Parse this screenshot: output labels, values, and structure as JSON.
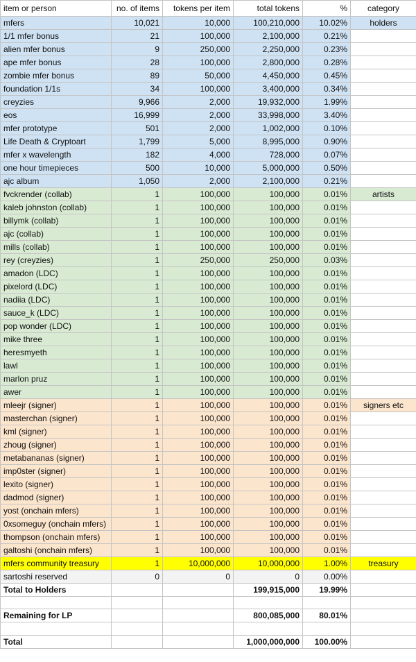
{
  "header": [
    "item or person",
    "no. of items",
    "tokens per item",
    "total tokens",
    "%",
    "category"
  ],
  "groups": [
    {
      "color": "#cfe2f3",
      "rows": [
        {
          "item": "mfers",
          "count": "10,021",
          "per_item": "10,000",
          "total": "100,210,000",
          "pct": "10.02%",
          "category": "holders"
        },
        {
          "item": "1/1 mfer bonus",
          "count": "21",
          "per_item": "100,000",
          "total": "2,100,000",
          "pct": "0.21%"
        },
        {
          "item": "alien mfer bonus",
          "count": "9",
          "per_item": "250,000",
          "total": "2,250,000",
          "pct": "0.23%"
        },
        {
          "item": "ape mfer bonus",
          "count": "28",
          "per_item": "100,000",
          "total": "2,800,000",
          "pct": "0.28%"
        },
        {
          "item": "zombie mfer bonus",
          "count": "89",
          "per_item": "50,000",
          "total": "4,450,000",
          "pct": "0.45%"
        },
        {
          "item": "foundation 1/1s",
          "count": "34",
          "per_item": "100,000",
          "total": "3,400,000",
          "pct": "0.34%"
        },
        {
          "item": "creyzies",
          "count": "9,966",
          "per_item": "2,000",
          "total": "19,932,000",
          "pct": "1.99%"
        },
        {
          "item": "eos",
          "count": "16,999",
          "per_item": "2,000",
          "total": "33,998,000",
          "pct": "3.40%"
        },
        {
          "item": "mfer prototype",
          "count": "501",
          "per_item": "2,000",
          "total": "1,002,000",
          "pct": "0.10%"
        },
        {
          "item": "Life Death & Cryptoart",
          "count": "1,799",
          "per_item": "5,000",
          "total": "8,995,000",
          "pct": "0.90%"
        },
        {
          "item": "mfer x wavelength",
          "count": "182",
          "per_item": "4,000",
          "total": "728,000",
          "pct": "0.07%"
        },
        {
          "item": "one hour timepieces",
          "count": "500",
          "per_item": "10,000",
          "total": "5,000,000",
          "pct": "0.50%"
        },
        {
          "item": "ajc album",
          "count": "1,050",
          "per_item": "2,000",
          "total": "2,100,000",
          "pct": "0.21%"
        }
      ]
    },
    {
      "color": "#d9ead3",
      "rows": [
        {
          "item": "fvckrender (collab)",
          "count": "1",
          "per_item": "100,000",
          "total": "100,000",
          "pct": "0.01%",
          "category": "artists"
        },
        {
          "item": "kaleb johnston (collab)",
          "count": "1",
          "per_item": "100,000",
          "total": "100,000",
          "pct": "0.01%"
        },
        {
          "item": "billymk (collab)",
          "count": "1",
          "per_item": "100,000",
          "total": "100,000",
          "pct": "0.01%"
        },
        {
          "item": "ajc (collab)",
          "count": "1",
          "per_item": "100,000",
          "total": "100,000",
          "pct": "0.01%"
        },
        {
          "item": "mills (collab)",
          "count": "1",
          "per_item": "100,000",
          "total": "100,000",
          "pct": "0.01%"
        },
        {
          "item": "rey (creyzies)",
          "count": "1",
          "per_item": "250,000",
          "total": "250,000",
          "pct": "0.03%"
        },
        {
          "item": "amadon (LDC)",
          "count": "1",
          "per_item": "100,000",
          "total": "100,000",
          "pct": "0.01%"
        },
        {
          "item": "pixelord (LDC)",
          "count": "1",
          "per_item": "100,000",
          "total": "100,000",
          "pct": "0.01%"
        },
        {
          "item": "nadiia (LDC)",
          "count": "1",
          "per_item": "100,000",
          "total": "100,000",
          "pct": "0.01%"
        },
        {
          "item": "sauce_k (LDC)",
          "count": "1",
          "per_item": "100,000",
          "total": "100,000",
          "pct": "0.01%"
        },
        {
          "item": "pop wonder (LDC)",
          "count": "1",
          "per_item": "100,000",
          "total": "100,000",
          "pct": "0.01%"
        },
        {
          "item": "mike three",
          "count": "1",
          "per_item": "100,000",
          "total": "100,000",
          "pct": "0.01%"
        },
        {
          "item": "heresmyeth",
          "count": "1",
          "per_item": "100,000",
          "total": "100,000",
          "pct": "0.01%"
        },
        {
          "item": "lawl",
          "count": "1",
          "per_item": "100,000",
          "total": "100,000",
          "pct": "0.01%"
        },
        {
          "item": "marlon pruz",
          "count": "1",
          "per_item": "100,000",
          "total": "100,000",
          "pct": "0.01%"
        },
        {
          "item": "awer",
          "count": "1",
          "per_item": "100,000",
          "total": "100,000",
          "pct": "0.01%"
        }
      ]
    },
    {
      "color": "#fce5cd",
      "rows": [
        {
          "item": "mleejr (signer)",
          "count": "1",
          "per_item": "100,000",
          "total": "100,000",
          "pct": "0.01%",
          "category": "signers etc"
        },
        {
          "item": "masterchan (signer)",
          "count": "1",
          "per_item": "100,000",
          "total": "100,000",
          "pct": "0.01%"
        },
        {
          "item": "kml (signer)",
          "count": "1",
          "per_item": "100,000",
          "total": "100,000",
          "pct": "0.01%"
        },
        {
          "item": "zhoug (signer)",
          "count": "1",
          "per_item": "100,000",
          "total": "100,000",
          "pct": "0.01%"
        },
        {
          "item": "metabananas (signer)",
          "count": "1",
          "per_item": "100,000",
          "total": "100,000",
          "pct": "0.01%"
        },
        {
          "item": "imp0ster (signer)",
          "count": "1",
          "per_item": "100,000",
          "total": "100,000",
          "pct": "0.01%"
        },
        {
          "item": "lexito (signer)",
          "count": "1",
          "per_item": "100,000",
          "total": "100,000",
          "pct": "0.01%"
        },
        {
          "item": "dadmod (signer)",
          "count": "1",
          "per_item": "100,000",
          "total": "100,000",
          "pct": "0.01%"
        },
        {
          "item": "yost (onchain mfers)",
          "count": "1",
          "per_item": "100,000",
          "total": "100,000",
          "pct": "0.01%"
        },
        {
          "item": "0xsomeguy (onchain mfers)",
          "count": "1",
          "per_item": "100,000",
          "total": "100,000",
          "pct": "0.01%"
        },
        {
          "item": "thompson (onchain mfers)",
          "count": "1",
          "per_item": "100,000",
          "total": "100,000",
          "pct": "0.01%"
        },
        {
          "item": "galtoshi (onchain mfers)",
          "count": "1",
          "per_item": "100,000",
          "total": "100,000",
          "pct": "0.01%"
        }
      ]
    },
    {
      "color": "#ffff00",
      "rows": [
        {
          "item": "mfers community treasury",
          "count": "1",
          "per_item": "10,000,000",
          "total": "10,000,000",
          "pct": "1.00%",
          "category": "treasury"
        }
      ]
    },
    {
      "color": "#f3f3f3",
      "rows": [
        {
          "item": "sartoshi reserved",
          "count": "0",
          "per_item": "0",
          "total": "0",
          "pct": "0.00%"
        }
      ]
    }
  ],
  "summary": {
    "holders": {
      "item": "Total to Holders",
      "total": "199,915,000",
      "pct": "19.99%"
    },
    "lp": {
      "item": "Remaining for LP",
      "total": "800,085,000",
      "pct": "80.01%"
    },
    "total": {
      "item": "Total",
      "total": "1,000,000,000",
      "pct": "100.00%"
    }
  }
}
